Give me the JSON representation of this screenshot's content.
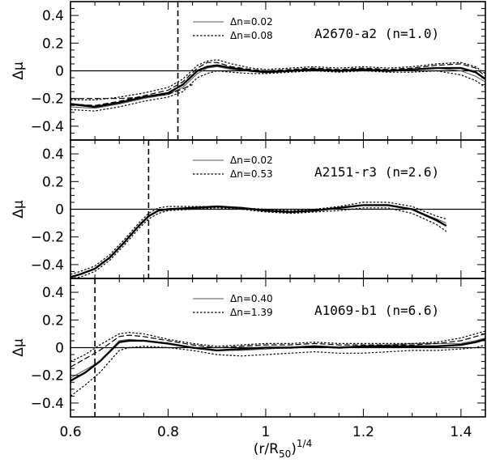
{
  "chart_data": {
    "type": "line",
    "xlabel": "(r/R50)1/4",
    "xlabel_parts": {
      "base": "(r/R",
      "sub": "50",
      "close": ")",
      "sup": "1/4"
    },
    "ylabel": "Δμ",
    "xlim": [
      0.6,
      1.45
    ],
    "ylim": [
      -0.5,
      0.5
    ],
    "xticks": [
      0.6,
      0.8,
      1,
      1.2,
      1.4
    ],
    "xtick_labels": [
      "0.6",
      "0.8",
      "1",
      "1.2",
      "1.4"
    ],
    "yticks": [
      -0.4,
      -0.2,
      0,
      0.2,
      0.4
    ],
    "ytick_labels": [
      "−0.4",
      "−0.2",
      "0",
      "0.2",
      "0.4"
    ],
    "panels": [
      {
        "label": "A2670-a2 (n=1.0)",
        "legend": [
          "Δn=0.02",
          "Δn=0.08"
        ],
        "cutoff_x": 0.82,
        "series": [
          {
            "name": "Δn=0.02",
            "style": "solid-gray",
            "x": [
              0.6,
              0.65,
              0.7,
              0.75,
              0.8,
              0.83,
              0.86,
              0.88,
              0.9,
              0.93,
              0.97,
              1.0,
              1.05,
              1.1,
              1.15,
              1.2,
              1.25,
              1.3,
              1.35,
              1.4,
              1.43,
              1.45
            ],
            "y": [
              -0.26,
              -0.27,
              -0.24,
              -0.2,
              -0.17,
              -0.12,
              -0.02,
              0.02,
              0.03,
              0.01,
              0.0,
              -0.01,
              0.0,
              0.01,
              0.0,
              0.01,
              0.0,
              0.01,
              0.02,
              0.0,
              -0.04,
              -0.08
            ]
          },
          {
            "name": "Δn=0.02",
            "style": "dashed",
            "x": [
              0.6,
              0.65,
              0.7,
              0.75,
              0.8,
              0.83,
              0.86,
              0.88,
              0.9,
              0.93,
              0.97,
              1.0,
              1.05,
              1.1,
              1.15,
              1.2,
              1.25,
              1.3,
              1.35,
              1.4,
              1.43,
              1.45
            ],
            "y": [
              -0.24,
              -0.25,
              -0.22,
              -0.18,
              -0.14,
              -0.08,
              0.02,
              0.06,
              0.06,
              0.03,
              0.01,
              0.0,
              0.01,
              0.02,
              0.01,
              0.02,
              0.01,
              0.02,
              0.04,
              0.05,
              0.02,
              -0.04
            ]
          },
          {
            "name": "Δn=0.08",
            "style": "dotted",
            "x": [
              0.6,
              0.65,
              0.7,
              0.75,
              0.8,
              0.83,
              0.86,
              0.88,
              0.9,
              0.93,
              0.97,
              1.0,
              1.05,
              1.1,
              1.15,
              1.2,
              1.25,
              1.3,
              1.35,
              1.4,
              1.43,
              1.45
            ],
            "y": [
              -0.28,
              -0.29,
              -0.26,
              -0.22,
              -0.19,
              -0.15,
              -0.05,
              -0.02,
              0.0,
              -0.01,
              -0.02,
              -0.02,
              -0.01,
              0.0,
              -0.01,
              0.0,
              -0.01,
              -0.01,
              0.0,
              -0.03,
              -0.07,
              -0.12
            ]
          },
          {
            "name": "Δn=0.08",
            "style": "dotted",
            "x": [
              0.6,
              0.65,
              0.7,
              0.75,
              0.8,
              0.83,
              0.86,
              0.88,
              0.9,
              0.93,
              0.97,
              1.0,
              1.05,
              1.1,
              1.15,
              1.2,
              1.25,
              1.3,
              1.35,
              1.4,
              1.43,
              1.45
            ],
            "y": [
              -0.21,
              -0.21,
              -0.19,
              -0.16,
              -0.12,
              -0.06,
              0.04,
              0.07,
              0.08,
              0.05,
              0.02,
              0.01,
              0.02,
              0.03,
              0.02,
              0.03,
              0.02,
              0.03,
              0.05,
              0.06,
              0.03,
              -0.02
            ]
          },
          {
            "name": "",
            "style": "thick",
            "x": [
              0.6,
              0.65,
              0.7,
              0.75,
              0.8,
              0.83,
              0.86,
              0.88,
              0.9,
              0.93,
              0.97,
              1.0,
              1.05,
              1.1,
              1.15,
              1.2,
              1.25,
              1.3,
              1.35,
              1.4,
              1.43,
              1.45
            ],
            "y": [
              -0.24,
              -0.26,
              -0.23,
              -0.19,
              -0.16,
              -0.1,
              0.0,
              0.03,
              0.04,
              0.02,
              0.0,
              -0.01,
              0.0,
              0.01,
              0.0,
              0.01,
              0.0,
              0.01,
              0.02,
              0.02,
              -0.01,
              -0.06
            ]
          },
          {
            "name": "",
            "style": "dashed",
            "x": [
              0.6,
              0.65,
              0.7,
              0.75,
              0.8,
              0.83,
              0.85
            ],
            "y": [
              -0.2,
              -0.2,
              -0.2,
              -0.19,
              -0.17,
              -0.13,
              -0.1
            ]
          }
        ]
      },
      {
        "label": "A2151-r3 (n=2.6)",
        "legend": [
          "Δn=0.02",
          "Δn=0.53"
        ],
        "cutoff_x": 0.76,
        "series": [
          {
            "name": "Δn=0.02",
            "style": "solid-gray",
            "x": [
              0.6,
              0.62,
              0.65,
              0.68,
              0.71,
              0.74,
              0.76,
              0.78,
              0.8,
              0.85,
              0.9,
              0.95,
              1.0,
              1.05,
              1.1,
              1.15,
              1.2,
              1.25,
              1.3,
              1.35,
              1.37
            ],
            "y": [
              -0.49,
              -0.47,
              -0.43,
              -0.35,
              -0.24,
              -0.12,
              -0.05,
              -0.01,
              0.0,
              0.01,
              0.02,
              0.01,
              -0.01,
              -0.02,
              -0.01,
              0.01,
              0.03,
              0.03,
              0.0,
              -0.07,
              -0.1
            ]
          },
          {
            "name": "Δn=0.53",
            "style": "dotted",
            "x": [
              0.6,
              0.62,
              0.65,
              0.68,
              0.71,
              0.74,
              0.76,
              0.78,
              0.8,
              0.85,
              0.9,
              0.95,
              1.0,
              1.05,
              1.1,
              1.15,
              1.2,
              1.25,
              1.3,
              1.35,
              1.37
            ],
            "y": [
              -0.47,
              -0.45,
              -0.41,
              -0.33,
              -0.22,
              -0.1,
              -0.03,
              0.01,
              0.02,
              0.02,
              0.02,
              0.01,
              0.0,
              -0.01,
              0.0,
              0.02,
              0.05,
              0.05,
              0.02,
              -0.05,
              -0.07
            ]
          },
          {
            "name": "Δn=0.53",
            "style": "dotted",
            "x": [
              0.6,
              0.62,
              0.65,
              0.68,
              0.71,
              0.74,
              0.76,
              0.78,
              0.8,
              0.85,
              0.9,
              0.95,
              1.0,
              1.05,
              1.1,
              1.15,
              1.2,
              1.25,
              1.3,
              1.35,
              1.37
            ],
            "y": [
              -0.5,
              -0.49,
              -0.45,
              -0.37,
              -0.26,
              -0.14,
              -0.07,
              -0.03,
              -0.01,
              0.0,
              0.01,
              0.0,
              -0.02,
              -0.03,
              -0.02,
              -0.01,
              0.01,
              0.01,
              -0.03,
              -0.11,
              -0.16
            ]
          },
          {
            "name": "",
            "style": "thick",
            "x": [
              0.6,
              0.62,
              0.65,
              0.68,
              0.71,
              0.74,
              0.76,
              0.78,
              0.8,
              0.85,
              0.9,
              0.95,
              1.0,
              1.05,
              1.1,
              1.15,
              1.2,
              1.25,
              1.3,
              1.35,
              1.37
            ],
            "y": [
              -0.49,
              -0.47,
              -0.43,
              -0.35,
              -0.24,
              -0.12,
              -0.05,
              -0.01,
              0.0,
              0.01,
              0.02,
              0.01,
              -0.01,
              -0.02,
              -0.01,
              0.01,
              0.03,
              0.03,
              0.0,
              -0.08,
              -0.12
            ]
          }
        ]
      },
      {
        "label": "A1069-b1 (n=6.6)",
        "legend": [
          "Δn=0.40",
          "Δn=1.39"
        ],
        "cutoff_x": 0.65,
        "series": [
          {
            "name": "Δn=0.40",
            "style": "solid-gray",
            "x": [
              0.6,
              0.63,
              0.66,
              0.7,
              0.72,
              0.75,
              0.8,
              0.85,
              0.9,
              0.95,
              1.0,
              1.05,
              1.1,
              1.15,
              1.2,
              1.25,
              1.3,
              1.35,
              1.4,
              1.43,
              1.45
            ],
            "y": [
              -0.22,
              -0.16,
              -0.1,
              0.05,
              0.06,
              0.05,
              0.03,
              0.0,
              -0.02,
              -0.02,
              -0.01,
              0.0,
              0.01,
              0.0,
              0.01,
              0.02,
              0.03,
              0.03,
              0.03,
              0.05,
              0.07
            ]
          },
          {
            "name": "Δn=1.39",
            "style": "dotted",
            "x": [
              0.6,
              0.63,
              0.66,
              0.7,
              0.72,
              0.75,
              0.8,
              0.85,
              0.9,
              0.95,
              1.0,
              1.05,
              1.1,
              1.15,
              1.2,
              1.25,
              1.3,
              1.35,
              1.4,
              1.43,
              1.45
            ],
            "y": [
              -0.1,
              -0.05,
              0.02,
              0.1,
              0.11,
              0.1,
              0.06,
              0.03,
              0.01,
              0.02,
              0.03,
              0.03,
              0.04,
              0.03,
              0.03,
              0.03,
              0.03,
              0.04,
              0.07,
              0.1,
              0.12
            ]
          },
          {
            "name": "Δn=1.39",
            "style": "dotted",
            "x": [
              0.6,
              0.63,
              0.66,
              0.7,
              0.72,
              0.75,
              0.8,
              0.85,
              0.9,
              0.95,
              1.0,
              1.05,
              1.1,
              1.15,
              1.2,
              1.25,
              1.3,
              1.35,
              1.4,
              1.43,
              1.45
            ],
            "y": [
              -0.35,
              -0.27,
              -0.18,
              -0.02,
              0.0,
              0.01,
              0.0,
              -0.02,
              -0.05,
              -0.06,
              -0.05,
              -0.04,
              -0.03,
              -0.04,
              -0.04,
              -0.03,
              -0.02,
              -0.02,
              -0.01,
              0.0,
              0.02
            ]
          },
          {
            "name": "",
            "style": "dashed",
            "x": [
              0.6,
              0.63,
              0.66,
              0.7,
              0.72,
              0.75,
              0.8,
              0.85,
              0.9,
              0.95,
              1.0,
              1.05,
              1.1,
              1.15,
              1.2,
              1.25,
              1.3,
              1.35,
              1.4,
              1.43,
              1.45
            ],
            "y": [
              -0.14,
              -0.08,
              -0.02,
              0.08,
              0.09,
              0.08,
              0.05,
              0.02,
              0.0,
              0.01,
              0.02,
              0.02,
              0.03,
              0.02,
              0.02,
              0.02,
              0.02,
              0.03,
              0.05,
              0.08,
              0.1
            ]
          },
          {
            "name": "",
            "style": "thick",
            "x": [
              0.6,
              0.63,
              0.66,
              0.7,
              0.72,
              0.75,
              0.8,
              0.85,
              0.9,
              0.95,
              1.0,
              1.05,
              1.1,
              1.15,
              1.2,
              1.25,
              1.3,
              1.35,
              1.4,
              1.43,
              1.45
            ],
            "y": [
              -0.24,
              -0.18,
              -0.1,
              0.04,
              0.05,
              0.05,
              0.03,
              0.0,
              -0.02,
              -0.01,
              0.0,
              0.0,
              0.01,
              0.0,
              0.01,
              0.01,
              0.01,
              0.01,
              0.02,
              0.04,
              0.06
            ]
          }
        ]
      }
    ]
  }
}
